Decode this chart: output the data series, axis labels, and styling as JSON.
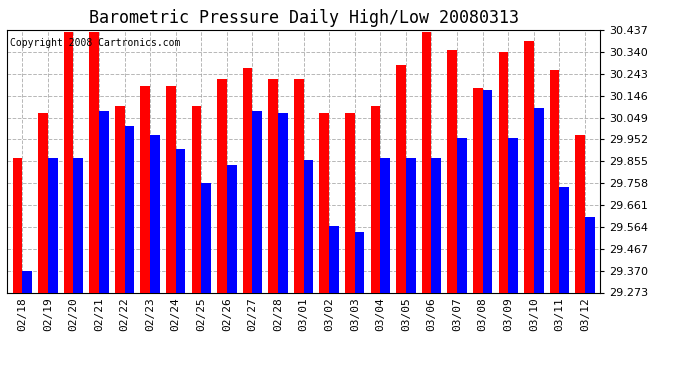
{
  "title": "Barometric Pressure Daily High/Low 20080313",
  "copyright": "Copyright 2008 Cartronics.com",
  "dates": [
    "02/18",
    "02/19",
    "02/20",
    "02/21",
    "02/22",
    "02/23",
    "02/24",
    "02/25",
    "02/26",
    "02/27",
    "02/28",
    "03/01",
    "03/02",
    "03/03",
    "03/04",
    "03/05",
    "03/06",
    "03/07",
    "03/08",
    "03/09",
    "03/10",
    "03/11",
    "03/12"
  ],
  "highs": [
    29.87,
    30.07,
    30.43,
    30.43,
    30.1,
    30.19,
    30.19,
    30.1,
    30.22,
    30.27,
    30.22,
    30.22,
    30.07,
    30.07,
    30.1,
    30.28,
    30.43,
    30.35,
    30.18,
    30.34,
    30.39,
    30.26,
    29.97
  ],
  "lows": [
    29.37,
    29.87,
    29.87,
    30.08,
    30.01,
    29.97,
    29.91,
    29.76,
    29.84,
    30.08,
    30.07,
    29.86,
    29.57,
    29.54,
    29.87,
    29.87,
    29.87,
    29.96,
    30.17,
    29.96,
    30.09,
    29.74,
    29.61
  ],
  "ymin": 29.273,
  "ymax": 30.437,
  "yticks": [
    29.273,
    29.37,
    29.467,
    29.564,
    29.661,
    29.758,
    29.855,
    29.952,
    30.049,
    30.146,
    30.243,
    30.34,
    30.437
  ],
  "high_color": "#ff0000",
  "low_color": "#0000ff",
  "bg_color": "#ffffff",
  "plot_bg": "#ffffff",
  "grid_color": "#999999",
  "title_fontsize": 12,
  "tick_fontsize": 8,
  "copyright_fontsize": 7
}
